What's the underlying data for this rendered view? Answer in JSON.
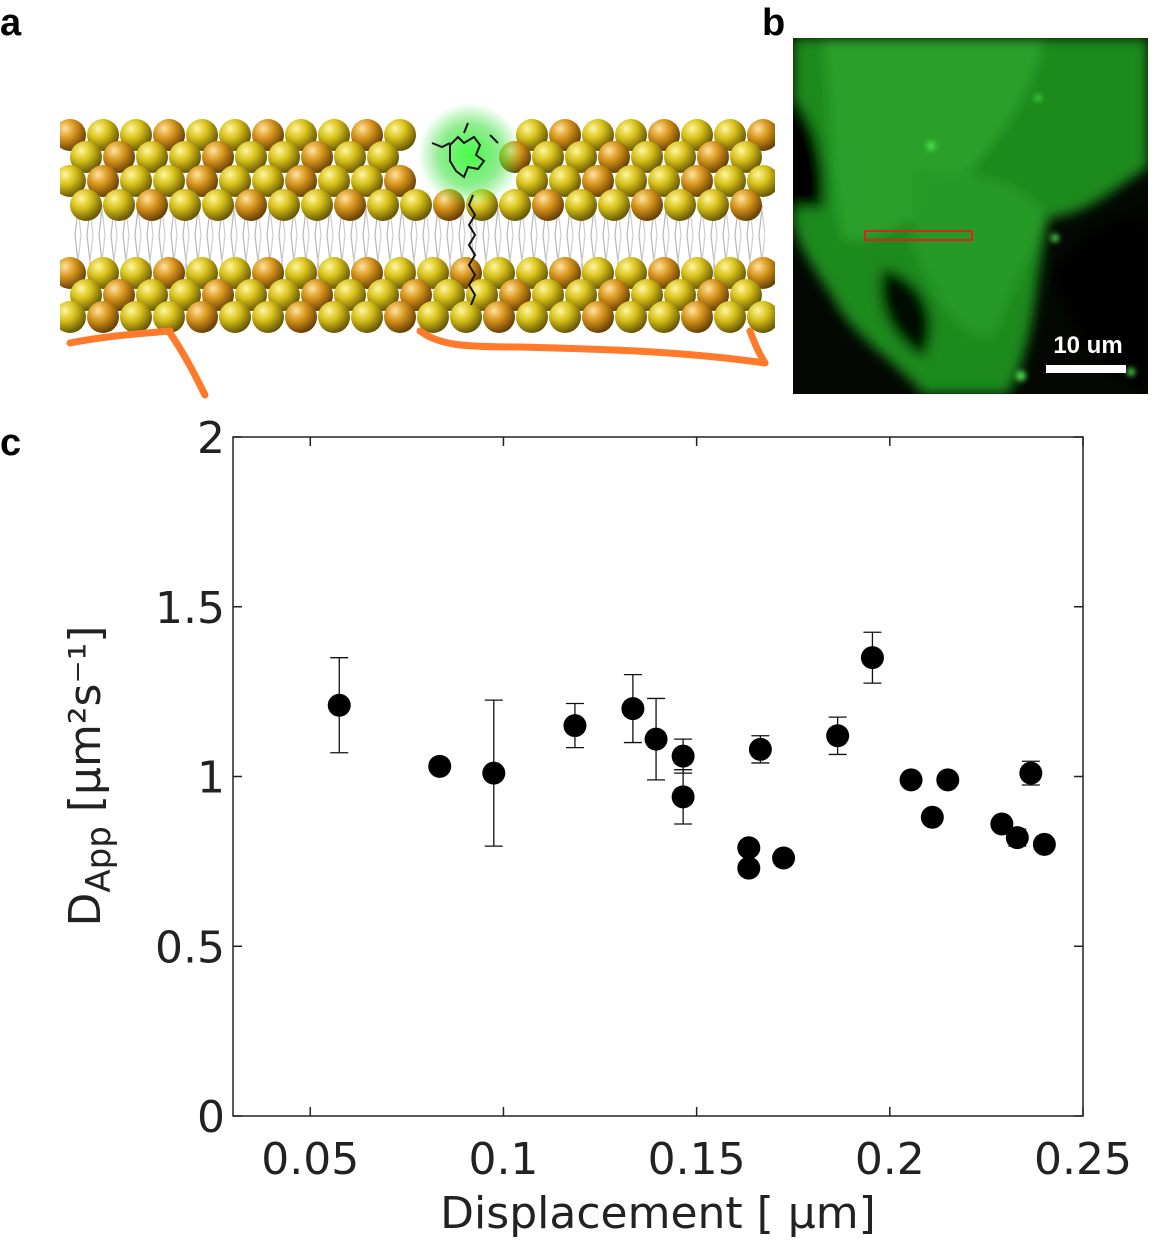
{
  "panel_labels": {
    "a": "a",
    "b": "b",
    "c": "c"
  },
  "micrograph": {
    "scale_bar_label": "10 um"
  },
  "colors": {
    "membrane_outline": "#ff7a2a",
    "roi_box": "#e02020",
    "fluorescence": "#2fae2f",
    "marker": "#000000"
  },
  "chart_data": {
    "type": "scatter",
    "title": "",
    "xlabel": "Displacement [  μm]",
    "ylabel_main": "D",
    "ylabel_sub": "App",
    "ylabel_units": "[μm²s⁻¹]",
    "xlim": [
      0.03,
      0.25
    ],
    "ylim": [
      0,
      2
    ],
    "xticks": [
      0.05,
      0.1,
      0.15,
      0.2,
      0.25
    ],
    "xtick_labels": [
      "0.05",
      "0.1",
      "0.15",
      "0.2",
      "0.25"
    ],
    "yticks": [
      0,
      0.5,
      1,
      1.5,
      2
    ],
    "ytick_labels": [
      "0",
      "0.5",
      "1",
      "1.5",
      "2"
    ],
    "grid": false,
    "points": [
      {
        "x": 0.0575,
        "y": 1.21,
        "err": 0.14
      },
      {
        "x": 0.0835,
        "y": 1.03,
        "err": 0
      },
      {
        "x": 0.0975,
        "y": 1.01,
        "err": 0.215
      },
      {
        "x": 0.1185,
        "y": 1.15,
        "err": 0.065
      },
      {
        "x": 0.1335,
        "y": 1.2,
        "err": 0.1
      },
      {
        "x": 0.1395,
        "y": 1.11,
        "err": 0.12
      },
      {
        "x": 0.1465,
        "y": 1.06,
        "err": 0.05
      },
      {
        "x": 0.1465,
        "y": 0.94,
        "err": 0.08
      },
      {
        "x": 0.1635,
        "y": 0.79,
        "err": 0
      },
      {
        "x": 0.1635,
        "y": 0.73,
        "err": 0
      },
      {
        "x": 0.1665,
        "y": 1.08,
        "err": 0.04
      },
      {
        "x": 0.1725,
        "y": 0.76,
        "err": 0
      },
      {
        "x": 0.1865,
        "y": 1.12,
        "err": 0.055
      },
      {
        "x": 0.1955,
        "y": 1.35,
        "err": 0.075
      },
      {
        "x": 0.2055,
        "y": 0.99,
        "err": 0
      },
      {
        "x": 0.211,
        "y": 0.88,
        "err": 0
      },
      {
        "x": 0.215,
        "y": 0.99,
        "err": 0
      },
      {
        "x": 0.229,
        "y": 0.86,
        "err": 0
      },
      {
        "x": 0.233,
        "y": 0.82,
        "err": 0.025
      },
      {
        "x": 0.2365,
        "y": 1.01,
        "err": 0.035
      },
      {
        "x": 0.24,
        "y": 0.8,
        "err": 0
      }
    ]
  }
}
